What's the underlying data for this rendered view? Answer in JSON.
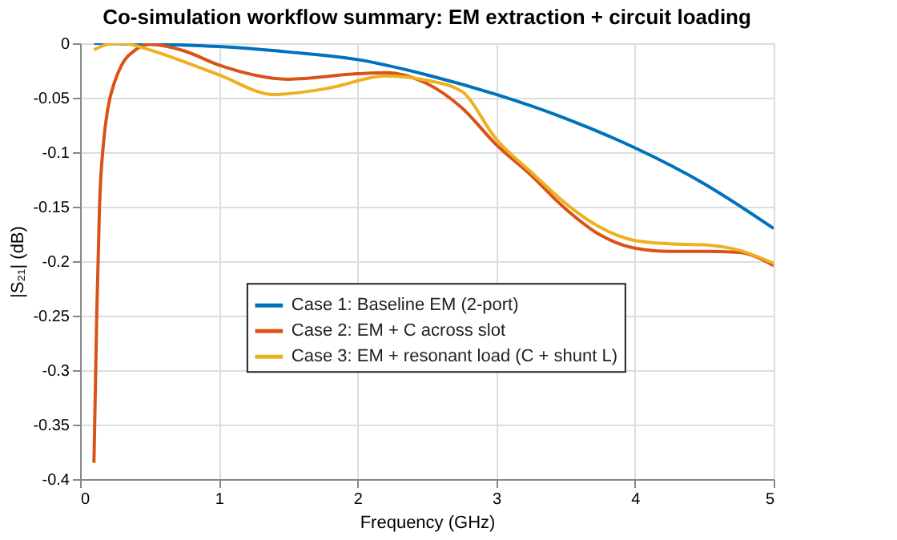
{
  "chart_data": {
    "type": "line",
    "title": "Co-simulation workflow summary: EM extraction + circuit loading",
    "xlabel": "Frequency (GHz)",
    "ylabel": "|S₂₁| (dB)",
    "xlim": [
      0,
      5
    ],
    "xticks": [
      0,
      1,
      2,
      3,
      4,
      5
    ],
    "ylim": [
      -0.4,
      0
    ],
    "yticks": [
      -0.4,
      -0.35,
      -0.3,
      -0.25,
      -0.2,
      -0.15,
      -0.1,
      -0.05,
      0
    ],
    "grid": true,
    "legend": "center",
    "line_style": "solid",
    "marker": "none",
    "series": [
      {
        "name": "Case 1: Baseline EM (2-port)",
        "color": "#0072bd",
        "x": [
          0.1,
          1.0,
          1.5,
          2.0,
          2.5,
          3.0,
          3.5,
          4.0,
          4.5,
          5.0
        ],
        "values": [
          0,
          -0.003,
          -0.008,
          -0.015,
          -0.029,
          -0.047,
          -0.069,
          -0.096,
          -0.129,
          -0.17
        ]
      },
      {
        "name": "Case 2: EM + C across slot",
        "color": "#d95319",
        "x": [
          0.1,
          0.12,
          0.14,
          0.17,
          0.2,
          0.25,
          0.3,
          0.4,
          0.5,
          0.75,
          1.0,
          1.5,
          2.0,
          2.2,
          2.5,
          2.75,
          3.0,
          3.25,
          3.5,
          3.75,
          4.0,
          4.25,
          4.5,
          4.75,
          5.0
        ],
        "values": [
          -0.385,
          -0.25,
          -0.15,
          -0.09,
          -0.06,
          -0.035,
          -0.02,
          -0.006,
          -0.001,
          -0.007,
          -0.02,
          -0.033,
          -0.028,
          -0.027,
          -0.037,
          -0.059,
          -0.093,
          -0.121,
          -0.152,
          -0.176,
          -0.188,
          -0.191,
          -0.191,
          -0.192,
          -0.204
        ]
      },
      {
        "name": "Case 3: EM + resonant load (C + shunt L)",
        "color": "#edb120",
        "x": [
          0.1,
          0.2,
          0.3,
          0.5,
          0.75,
          1.0,
          1.4,
          1.8,
          2.2,
          2.5,
          2.75,
          3.0,
          3.25,
          3.5,
          3.75,
          4.0,
          4.25,
          4.5,
          4.75,
          5.0
        ],
        "values": [
          -0.006,
          -0.001,
          0,
          -0.006,
          -0.017,
          -0.029,
          -0.047,
          -0.041,
          -0.03,
          -0.034,
          -0.044,
          -0.088,
          -0.118,
          -0.147,
          -0.169,
          -0.181,
          -0.184,
          -0.185,
          -0.19,
          -0.202
        ]
      }
    ]
  }
}
